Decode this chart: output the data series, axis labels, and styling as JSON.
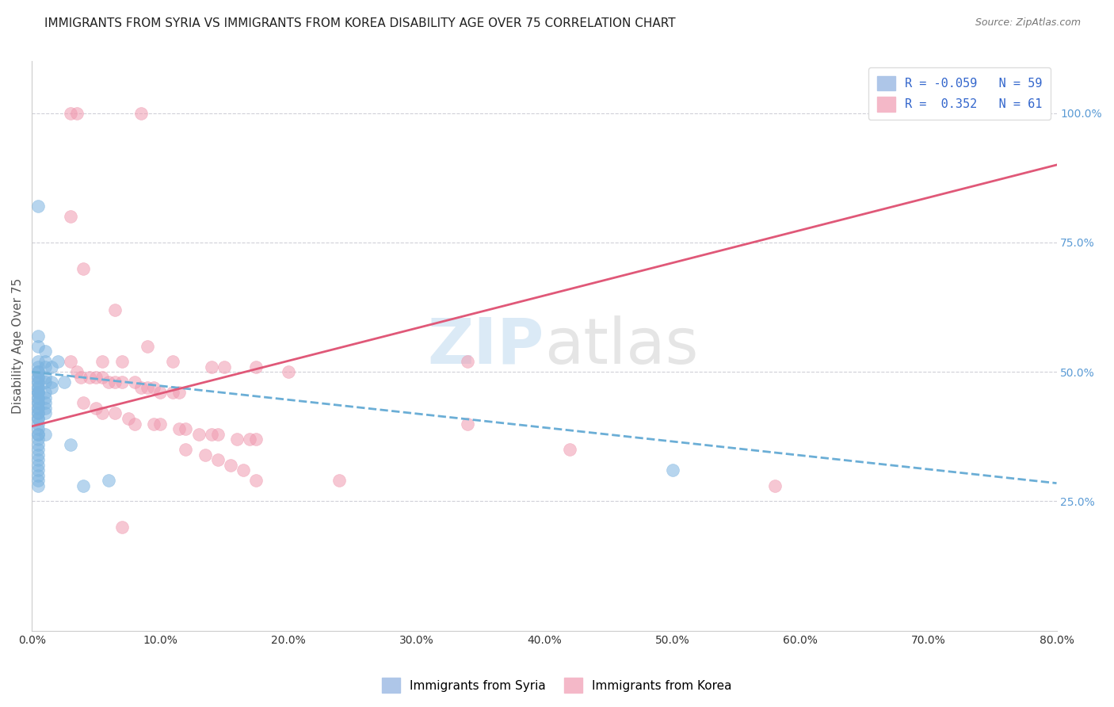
{
  "title": "IMMIGRANTS FROM SYRIA VS IMMIGRANTS FROM KOREA DISABILITY AGE OVER 75 CORRELATION CHART",
  "source": "Source: ZipAtlas.com",
  "ylabel": "Disability Age Over 75",
  "x_min": 0.0,
  "x_max": 0.8,
  "y_min": 0.0,
  "y_max": 1.1,
  "syria_color": "#7cb4e0",
  "korea_color": "#f09ab0",
  "syria_scatter": [
    [
      0.005,
      0.82
    ],
    [
      0.005,
      0.57
    ],
    [
      0.005,
      0.55
    ],
    [
      0.005,
      0.52
    ],
    [
      0.005,
      0.51
    ],
    [
      0.005,
      0.5
    ],
    [
      0.005,
      0.5
    ],
    [
      0.005,
      0.49
    ],
    [
      0.005,
      0.49
    ],
    [
      0.005,
      0.48
    ],
    [
      0.005,
      0.48
    ],
    [
      0.005,
      0.47
    ],
    [
      0.005,
      0.47
    ],
    [
      0.005,
      0.46
    ],
    [
      0.005,
      0.46
    ],
    [
      0.005,
      0.46
    ],
    [
      0.005,
      0.45
    ],
    [
      0.005,
      0.45
    ],
    [
      0.005,
      0.44
    ],
    [
      0.005,
      0.44
    ],
    [
      0.005,
      0.43
    ],
    [
      0.005,
      0.43
    ],
    [
      0.005,
      0.42
    ],
    [
      0.005,
      0.42
    ],
    [
      0.005,
      0.41
    ],
    [
      0.005,
      0.41
    ],
    [
      0.005,
      0.4
    ],
    [
      0.005,
      0.39
    ],
    [
      0.005,
      0.38
    ],
    [
      0.005,
      0.38
    ],
    [
      0.005,
      0.37
    ],
    [
      0.005,
      0.36
    ],
    [
      0.005,
      0.35
    ],
    [
      0.005,
      0.34
    ],
    [
      0.005,
      0.33
    ],
    [
      0.005,
      0.32
    ],
    [
      0.005,
      0.31
    ],
    [
      0.005,
      0.3
    ],
    [
      0.005,
      0.29
    ],
    [
      0.005,
      0.28
    ],
    [
      0.01,
      0.54
    ],
    [
      0.01,
      0.52
    ],
    [
      0.01,
      0.51
    ],
    [
      0.01,
      0.49
    ],
    [
      0.01,
      0.48
    ],
    [
      0.01,
      0.46
    ],
    [
      0.01,
      0.45
    ],
    [
      0.01,
      0.44
    ],
    [
      0.01,
      0.43
    ],
    [
      0.01,
      0.42
    ],
    [
      0.01,
      0.38
    ],
    [
      0.015,
      0.51
    ],
    [
      0.015,
      0.48
    ],
    [
      0.015,
      0.47
    ],
    [
      0.02,
      0.52
    ],
    [
      0.025,
      0.48
    ],
    [
      0.03,
      0.36
    ],
    [
      0.04,
      0.28
    ],
    [
      0.06,
      0.29
    ],
    [
      0.5,
      0.31
    ]
  ],
  "korea_scatter": [
    [
      0.03,
      1.0
    ],
    [
      0.035,
      1.0
    ],
    [
      0.085,
      1.0
    ],
    [
      0.77,
      1.0
    ],
    [
      0.03,
      0.8
    ],
    [
      0.04,
      0.7
    ],
    [
      0.065,
      0.62
    ],
    [
      0.09,
      0.55
    ],
    [
      0.03,
      0.52
    ],
    [
      0.055,
      0.52
    ],
    [
      0.07,
      0.52
    ],
    [
      0.11,
      0.52
    ],
    [
      0.14,
      0.51
    ],
    [
      0.15,
      0.51
    ],
    [
      0.175,
      0.51
    ],
    [
      0.2,
      0.5
    ],
    [
      0.035,
      0.5
    ],
    [
      0.038,
      0.49
    ],
    [
      0.045,
      0.49
    ],
    [
      0.05,
      0.49
    ],
    [
      0.055,
      0.49
    ],
    [
      0.06,
      0.48
    ],
    [
      0.065,
      0.48
    ],
    [
      0.07,
      0.48
    ],
    [
      0.08,
      0.48
    ],
    [
      0.085,
      0.47
    ],
    [
      0.09,
      0.47
    ],
    [
      0.095,
      0.47
    ],
    [
      0.1,
      0.46
    ],
    [
      0.11,
      0.46
    ],
    [
      0.115,
      0.46
    ],
    [
      0.04,
      0.44
    ],
    [
      0.05,
      0.43
    ],
    [
      0.055,
      0.42
    ],
    [
      0.065,
      0.42
    ],
    [
      0.075,
      0.41
    ],
    [
      0.08,
      0.4
    ],
    [
      0.095,
      0.4
    ],
    [
      0.1,
      0.4
    ],
    [
      0.115,
      0.39
    ],
    [
      0.12,
      0.39
    ],
    [
      0.13,
      0.38
    ],
    [
      0.14,
      0.38
    ],
    [
      0.145,
      0.38
    ],
    [
      0.16,
      0.37
    ],
    [
      0.17,
      0.37
    ],
    [
      0.175,
      0.37
    ],
    [
      0.12,
      0.35
    ],
    [
      0.135,
      0.34
    ],
    [
      0.145,
      0.33
    ],
    [
      0.155,
      0.32
    ],
    [
      0.165,
      0.31
    ],
    [
      0.175,
      0.29
    ],
    [
      0.07,
      0.2
    ],
    [
      0.24,
      0.29
    ],
    [
      0.58,
      0.28
    ],
    [
      0.34,
      0.52
    ],
    [
      0.34,
      0.4
    ],
    [
      0.42,
      0.35
    ]
  ],
  "syria_trendline": {
    "x": [
      0.0,
      0.8
    ],
    "y": [
      0.5,
      0.285
    ]
  },
  "korea_trendline": {
    "x": [
      0.0,
      0.8
    ],
    "y": [
      0.395,
      0.9
    ]
  },
  "grid_color": "#d0d0d8",
  "background_color": "#ffffff",
  "watermark_zip": "ZIP",
  "watermark_atlas": "atlas",
  "title_fontsize": 11,
  "axis_label_fontsize": 11,
  "tick_fontsize": 10,
  "legend_fontsize": 11
}
